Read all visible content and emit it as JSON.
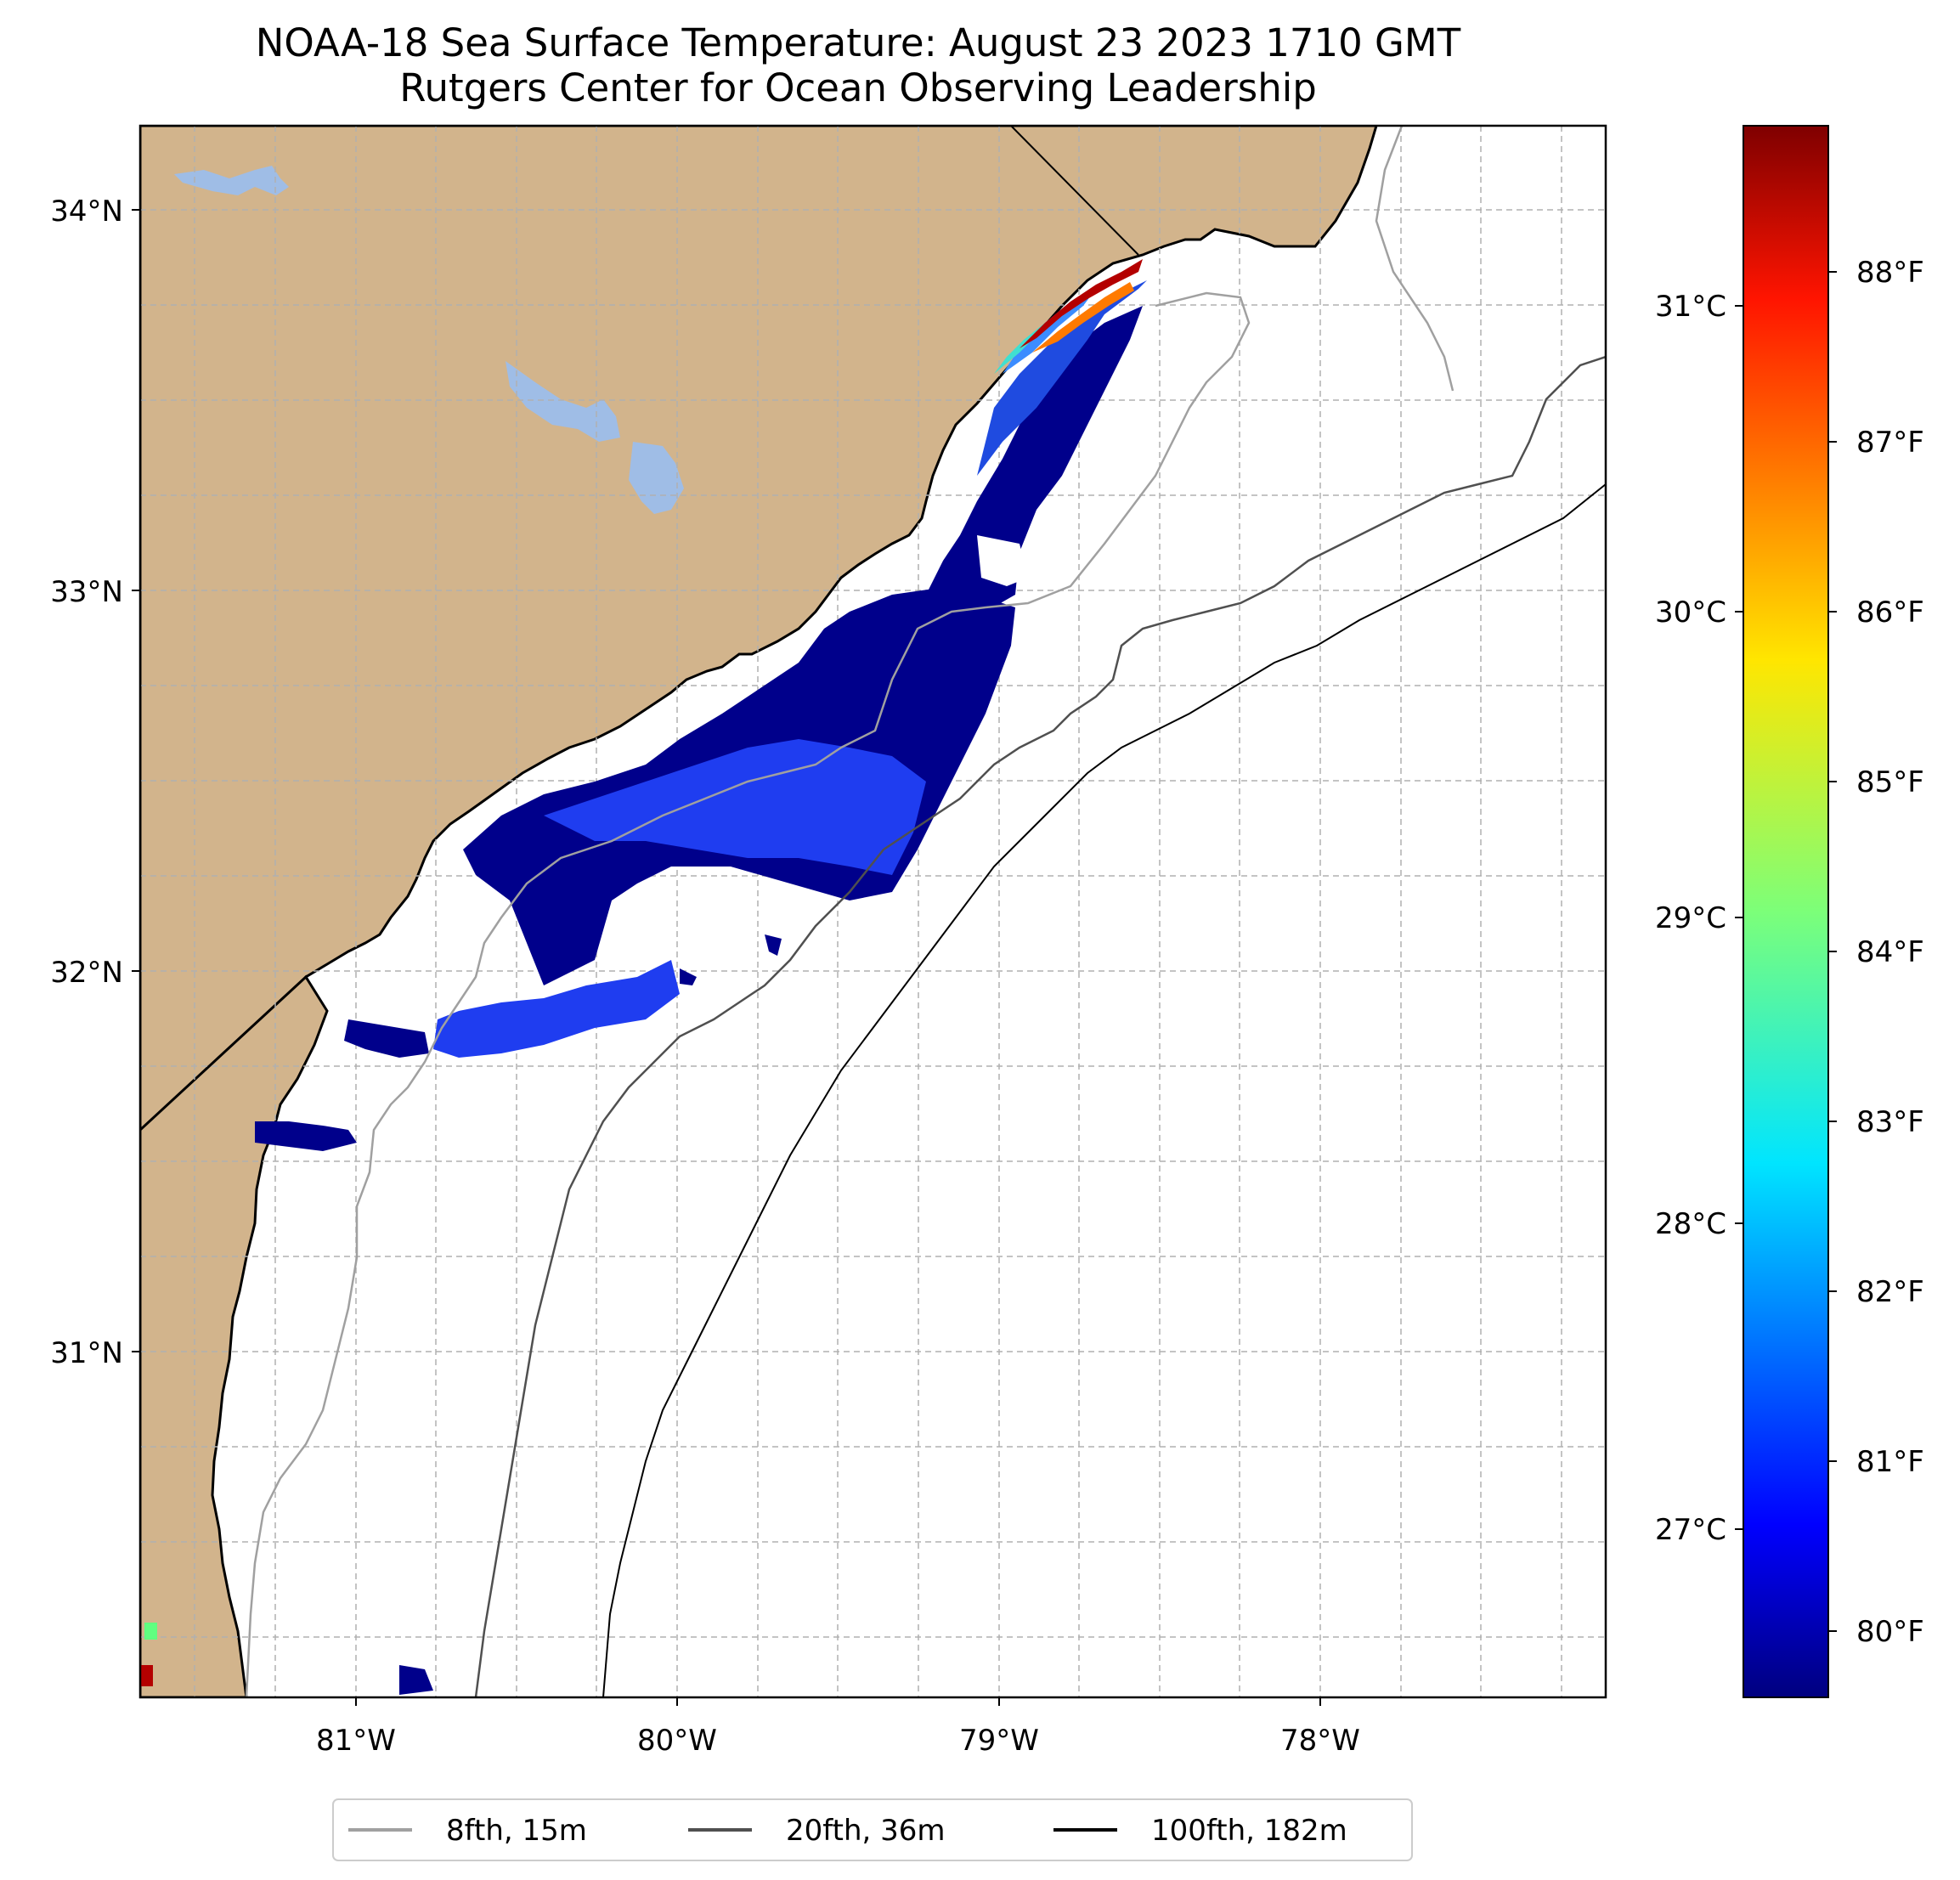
{
  "title": {
    "line1": "NOAA-18 Sea Surface Temperature: August 23 2023 1710 GMT",
    "line2": "Rutgers Center for Ocean Observing Leadership"
  },
  "map": {
    "lat_labels": [
      "34°N",
      "33°N",
      "32°N",
      "31°N"
    ],
    "lon_labels": [
      "81°W",
      "80°W",
      "79°W",
      "78°W"
    ]
  },
  "colorbar": {
    "celsius_labels": [
      "31°C",
      "30°C",
      "29°C",
      "28°C",
      "27°C"
    ],
    "fahrenheit_labels": [
      "88°F",
      "87°F",
      "86°F",
      "85°F",
      "84°F",
      "83°F",
      "82°F",
      "81°F",
      "80°F"
    ],
    "colormap": "jet"
  },
  "legend": {
    "items": [
      {
        "label": "8fth, 15m",
        "color": "#a0a0a0"
      },
      {
        "label": "20fth, 36m",
        "color": "#505050"
      },
      {
        "label": "100fth, 182m",
        "color": "#000000"
      }
    ]
  },
  "colors": {
    "land": "#d2b48c",
    "lake": "#9fbde6",
    "sst_cold": "#00008b",
    "sst_mid": "#1f3df0",
    "sst_warm": "#b40000"
  }
}
